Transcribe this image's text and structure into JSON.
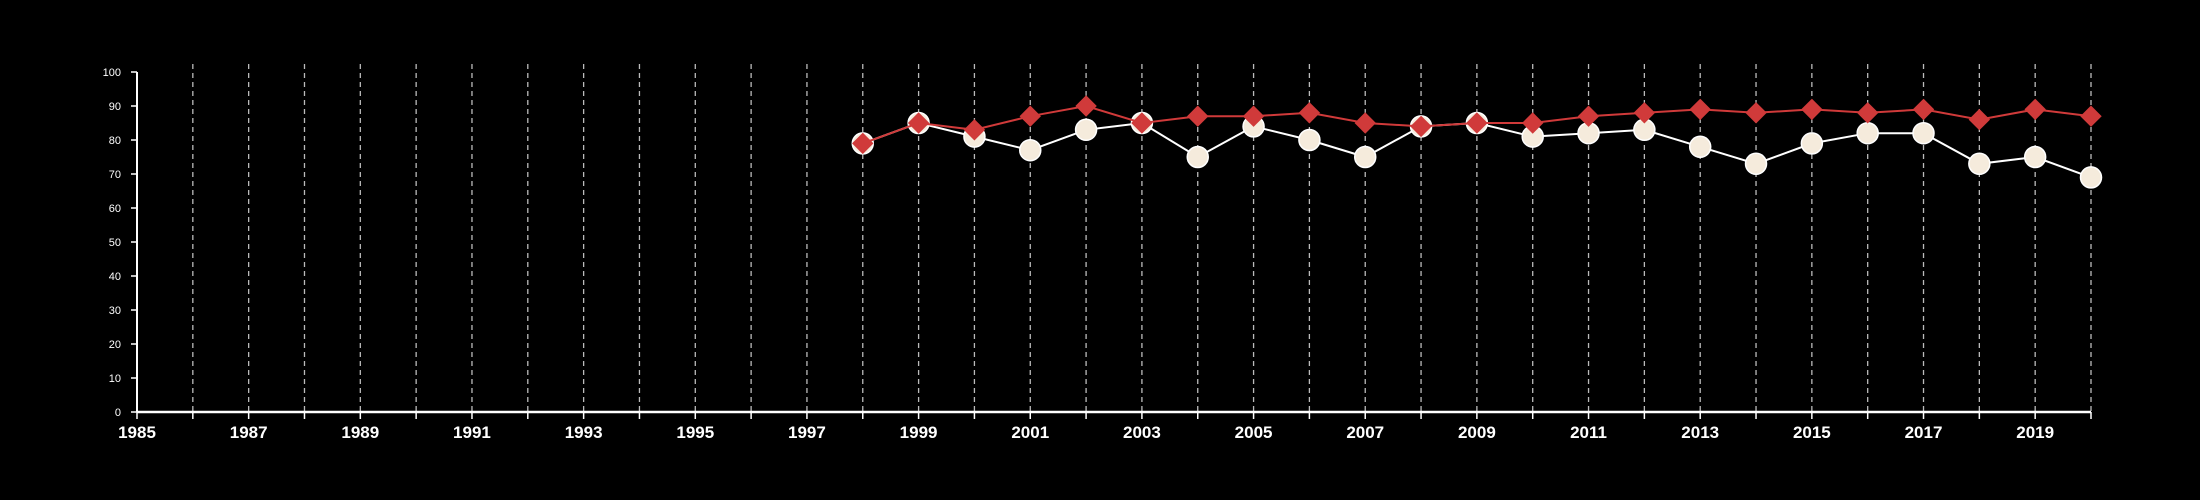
{
  "chart_data": {
    "type": "line",
    "title": "",
    "xlabel": "",
    "ylabel": "",
    "xlim": [
      1985,
      2020
    ],
    "ylim": [
      0,
      100
    ],
    "y_ticks": [
      0,
      10,
      20,
      30,
      40,
      50,
      60,
      70,
      80,
      90,
      100
    ],
    "x_tick_labels": [
      "1985",
      "1987",
      "1989",
      "1991",
      "1993",
      "1995",
      "1997",
      "1999",
      "2001",
      "2003",
      "2005",
      "2007",
      "2009",
      "2011",
      "2013",
      "2015",
      "2017",
      "2019"
    ],
    "grid": "vertical dashed, every year",
    "legend": "none",
    "x": [
      1998,
      1999,
      2000,
      2001,
      2002,
      2003,
      2004,
      2005,
      2006,
      2007,
      2008,
      2009,
      2010,
      2011,
      2012,
      2013,
      2014,
      2015,
      2016,
      2017,
      2018,
      2019,
      2020
    ],
    "series": [
      {
        "marker": "circle",
        "color": "#f5ebdc",
        "line_color": "#ffffff",
        "values": [
          79,
          85,
          81,
          77,
          83,
          85,
          75,
          84,
          80,
          75,
          84,
          85,
          81,
          82,
          83,
          78,
          73,
          79,
          82,
          82,
          73,
          75,
          69
        ]
      },
      {
        "marker": "diamond",
        "color": "#d03a3a",
        "line_color": "#d03a3a",
        "values": [
          79,
          85,
          83,
          87,
          90,
          85,
          87,
          87,
          88,
          85,
          84,
          85,
          85,
          87,
          88,
          89,
          88,
          89,
          88,
          89,
          86,
          89,
          87
        ]
      }
    ]
  },
  "colors": {
    "background": "#000000",
    "axis": "#ffffff",
    "grid": "#bbbbbb"
  }
}
